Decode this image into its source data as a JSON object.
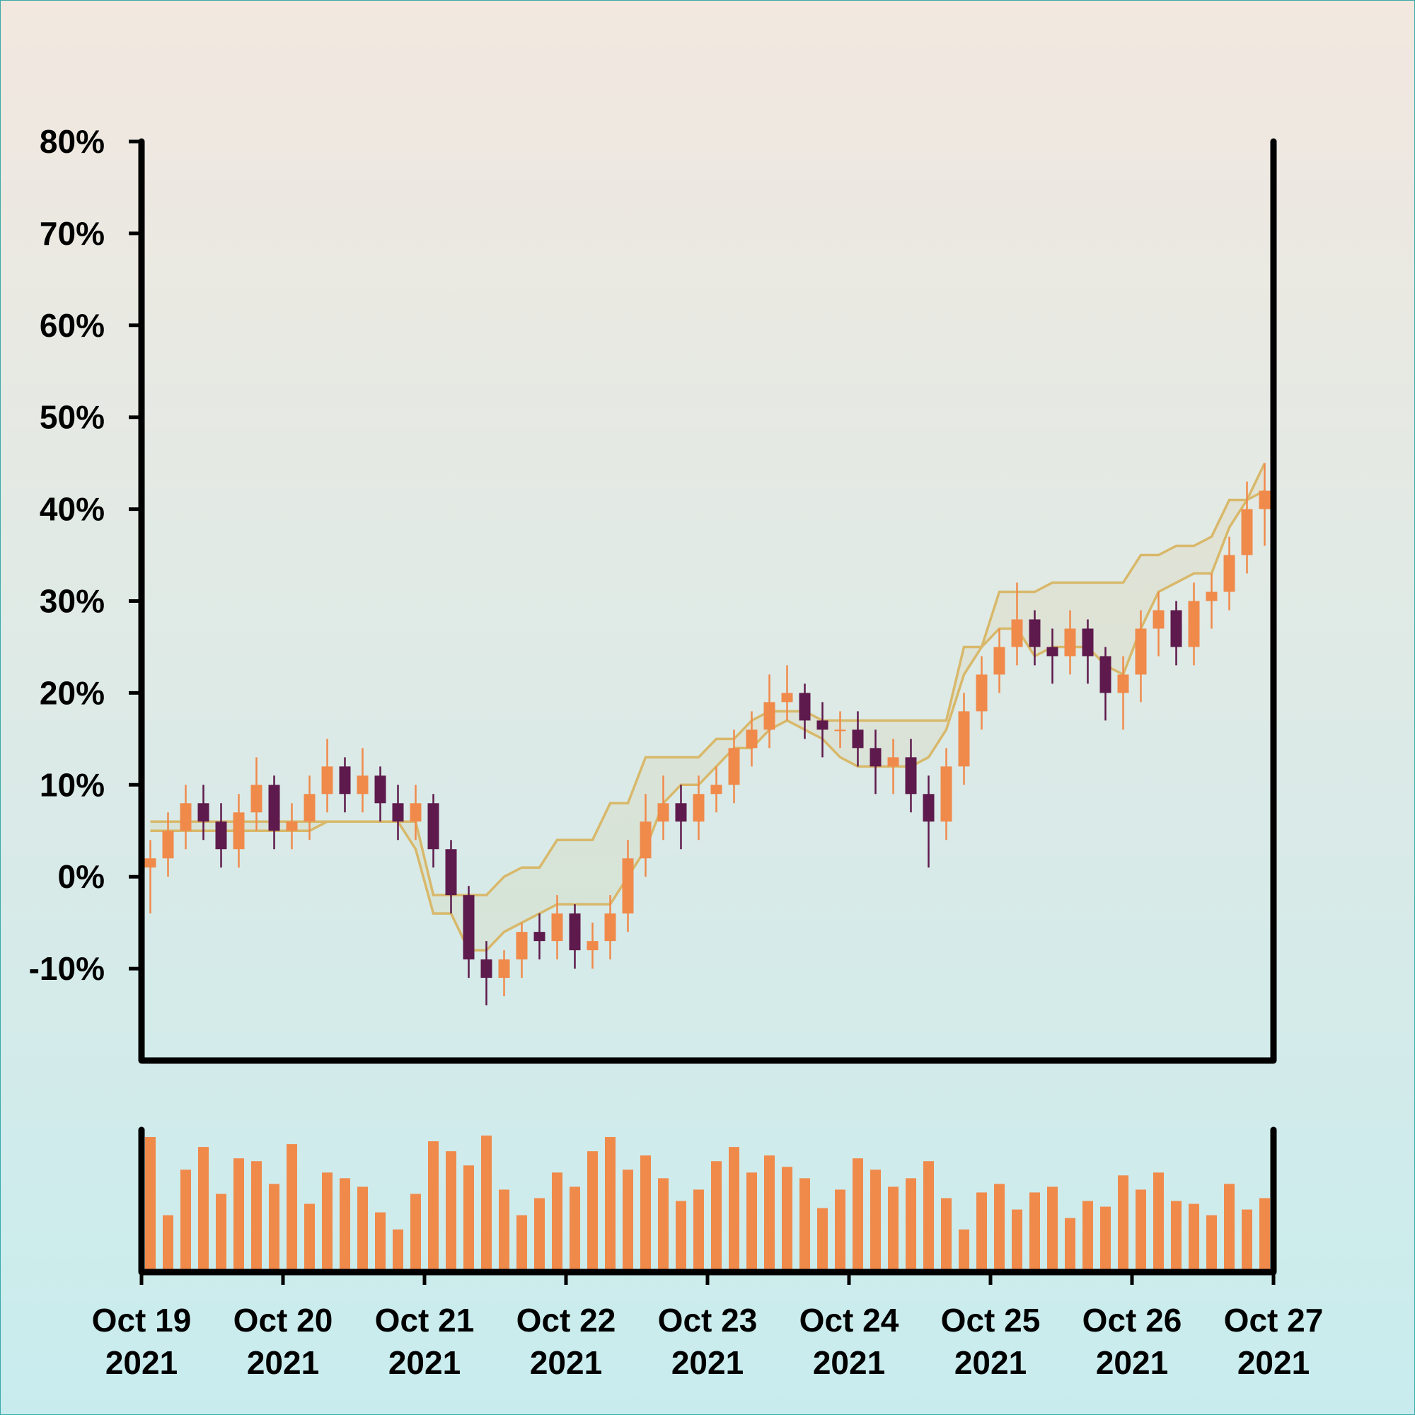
{
  "chart_data": {
    "type": "candlestick",
    "x_labels": [
      [
        "Oct 19",
        "2021"
      ],
      [
        "Oct 20",
        "2021"
      ],
      [
        "Oct 21",
        "2021"
      ],
      [
        "Oct 22",
        "2021"
      ],
      [
        "Oct 23",
        "2021"
      ],
      [
        "Oct 24",
        "2021"
      ],
      [
        "Oct 25",
        "2021"
      ],
      [
        "Oct 26",
        "2021"
      ],
      [
        "Oct 27",
        "2021"
      ]
    ],
    "ylim": [
      -20,
      80
    ],
    "yticks": [
      {
        "value": -10,
        "label": "-10%"
      },
      {
        "value": 0,
        "label": "0%"
      },
      {
        "value": 10,
        "label": "10%"
      },
      {
        "value": 20,
        "label": "20%"
      },
      {
        "value": 30,
        "label": "30%"
      },
      {
        "value": 40,
        "label": "40%"
      },
      {
        "value": 50,
        "label": "50%"
      },
      {
        "value": 60,
        "label": "60%"
      },
      {
        "value": 70,
        "label": "70%"
      },
      {
        "value": 80,
        "label": "80%"
      }
    ],
    "up_color": "#f08a4b",
    "down_color": "#5e1a4c",
    "band_color": "#d8b86a",
    "open": [
      1,
      2,
      5,
      8,
      6,
      3,
      7,
      10,
      5,
      6,
      9,
      12,
      9,
      11,
      8,
      6,
      8,
      3,
      -2,
      -9,
      -11,
      -9,
      -6,
      -7,
      -4,
      -8,
      -7,
      -4,
      2,
      6,
      8,
      6,
      9,
      10,
      14,
      16,
      19,
      20,
      17,
      16,
      16,
      14,
      12,
      13,
      9,
      6,
      12,
      18,
      22,
      25,
      28,
      25,
      24,
      27,
      24,
      20,
      22,
      27,
      29,
      25,
      30,
      31,
      35,
      40
    ],
    "close": [
      2,
      5,
      8,
      6,
      3,
      7,
      10,
      5,
      6,
      9,
      12,
      9,
      11,
      8,
      6,
      8,
      3,
      -2,
      -9,
      -11,
      -9,
      -6,
      -7,
      -4,
      -8,
      -7,
      -4,
      2,
      6,
      8,
      6,
      9,
      10,
      14,
      16,
      19,
      20,
      17,
      16,
      16,
      14,
      12,
      13,
      9,
      6,
      12,
      18,
      22,
      25,
      28,
      25,
      24,
      27,
      24,
      20,
      22,
      27,
      29,
      25,
      30,
      31,
      35,
      40,
      42
    ],
    "high": [
      4,
      7,
      10,
      10,
      8,
      9,
      13,
      11,
      8,
      11,
      15,
      13,
      14,
      12,
      10,
      10,
      9,
      4,
      -1,
      -7,
      -8,
      -5,
      -4,
      -2,
      -3,
      -5,
      -2,
      4,
      9,
      11,
      10,
      11,
      12,
      16,
      18,
      22,
      23,
      21,
      19,
      18,
      18,
      16,
      15,
      15,
      11,
      14,
      20,
      24,
      27,
      32,
      29,
      27,
      29,
      28,
      25,
      24,
      29,
      31,
      30,
      32,
      33,
      37,
      43,
      45
    ],
    "low": [
      -4,
      0,
      3,
      4,
      1,
      1,
      5,
      3,
      3,
      4,
      7,
      7,
      7,
      6,
      4,
      4,
      1,
      -4,
      -11,
      -14,
      -13,
      -11,
      -9,
      -9,
      -10,
      -10,
      -9,
      -6,
      0,
      4,
      3,
      4,
      7,
      8,
      12,
      14,
      17,
      15,
      13,
      14,
      12,
      9,
      9,
      7,
      1,
      4,
      10,
      16,
      20,
      23,
      23,
      21,
      22,
      21,
      17,
      16,
      19,
      24,
      23,
      23,
      27,
      29,
      33,
      36
    ],
    "volume": [
      95,
      40,
      72,
      88,
      55,
      80,
      78,
      62,
      90,
      48,
      70,
      66,
      60,
      42,
      30,
      55,
      92,
      85,
      75,
      96,
      58,
      40,
      52,
      70,
      60,
      85,
      95,
      72,
      82,
      66,
      50,
      58,
      78,
      88,
      70,
      82,
      74,
      66,
      45,
      58,
      80,
      72,
      60,
      66,
      78,
      52,
      30,
      56,
      62,
      44,
      56,
      60,
      38,
      50,
      46,
      68,
      58,
      70,
      50,
      48,
      40,
      62,
      44,
      52
    ],
    "upper": [
      6,
      6,
      6,
      6,
      6,
      6,
      6,
      6,
      6,
      6,
      6,
      6,
      6,
      6,
      6,
      6,
      -2,
      -2,
      -2,
      -2,
      0,
      1,
      1,
      4,
      4,
      4,
      8,
      8,
      13,
      13,
      13,
      13,
      15,
      15,
      17,
      18,
      18,
      18,
      17,
      17,
      17,
      17,
      17,
      17,
      17,
      17,
      25,
      25,
      31,
      31,
      31,
      32,
      32,
      32,
      32,
      32,
      35,
      35,
      36,
      36,
      37,
      41,
      41,
      45
    ],
    "lower": [
      5,
      5,
      5,
      5,
      5,
      5,
      5,
      5,
      5,
      5,
      6,
      6,
      6,
      6,
      6,
      3,
      -4,
      -4,
      -8,
      -8,
      -6,
      -5,
      -4,
      -3,
      -3,
      -3,
      -3,
      0,
      3,
      8,
      10,
      10,
      12,
      14,
      14,
      16,
      17,
      16,
      15,
      13,
      12,
      12,
      12,
      12,
      13,
      16,
      22,
      25,
      27,
      27,
      24,
      25,
      25,
      25,
      23,
      22,
      27,
      31,
      32,
      33,
      33,
      38,
      41,
      42
    ],
    "vlim": [
      0,
      100
    ]
  }
}
